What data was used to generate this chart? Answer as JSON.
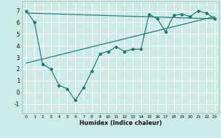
{
  "background_color": "#cceae8",
  "grid_color": "#ffffff",
  "line_color": "#1a7a6e",
  "xlabel": "Humidex (Indice chaleur)",
  "xlim": [
    -0.5,
    23.5
  ],
  "ylim": [
    -1.8,
    7.8
  ],
  "xticks": [
    0,
    1,
    2,
    3,
    4,
    5,
    6,
    7,
    8,
    9,
    10,
    11,
    12,
    13,
    14,
    15,
    16,
    17,
    18,
    19,
    20,
    21,
    22,
    23
  ],
  "yticks": [
    -1,
    0,
    1,
    2,
    3,
    4,
    5,
    6,
    7
  ],
  "line1_x": [
    0,
    1,
    2,
    3,
    4,
    5,
    6,
    7,
    8,
    9,
    10,
    11,
    12,
    13,
    14,
    15,
    16,
    17,
    18,
    19,
    20,
    21,
    22,
    23
  ],
  "line1_y": [
    7.0,
    6.0,
    2.4,
    2.0,
    0.6,
    0.3,
    -0.7,
    0.4,
    1.8,
    3.3,
    3.5,
    3.9,
    3.5,
    3.7,
    3.7,
    6.7,
    6.3,
    5.2,
    6.6,
    6.7,
    6.5,
    7.0,
    6.8,
    6.3
  ],
  "line2_x": [
    0,
    23
  ],
  "line2_y": [
    6.8,
    6.3
  ],
  "line3_x": [
    0,
    23
  ],
  "line3_y": [
    2.5,
    6.5
  ],
  "xtick_fontsize": 4.5,
  "ytick_fontsize": 5.5,
  "xlabel_fontsize": 6.0
}
